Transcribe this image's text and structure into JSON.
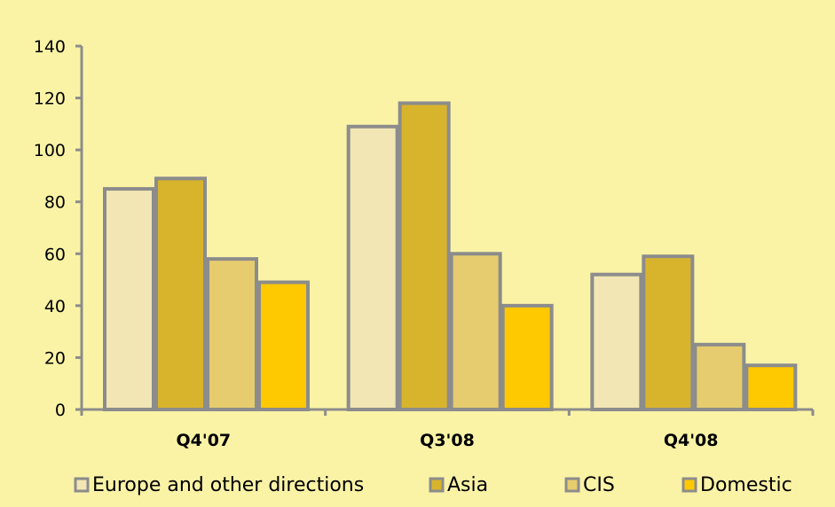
{
  "chart_data": {
    "type": "bar",
    "categories": [
      "Q4'07",
      "Q3'08",
      "Q4'08"
    ],
    "series": [
      {
        "name": "Europe and other directions",
        "values": [
          85,
          109,
          52
        ]
      },
      {
        "name": "Asia",
        "values": [
          89,
          118,
          59
        ]
      },
      {
        "name": "CIS",
        "values": [
          58,
          60,
          25
        ]
      },
      {
        "name": "Domestic",
        "values": [
          49,
          40,
          17
        ]
      }
    ],
    "ylim": [
      0,
      140
    ],
    "yticks": [
      0,
      20,
      40,
      60,
      80,
      100,
      120,
      140
    ],
    "grid": false,
    "legend_position": "bottom"
  },
  "colors": {
    "background": "#faf3a6",
    "bar_outline": "#8c8c8c",
    "axis": "#8c8c8c",
    "series": [
      "#f1e6b4",
      "#d8b42c",
      "#e6cc6e",
      "#ffc900"
    ]
  }
}
